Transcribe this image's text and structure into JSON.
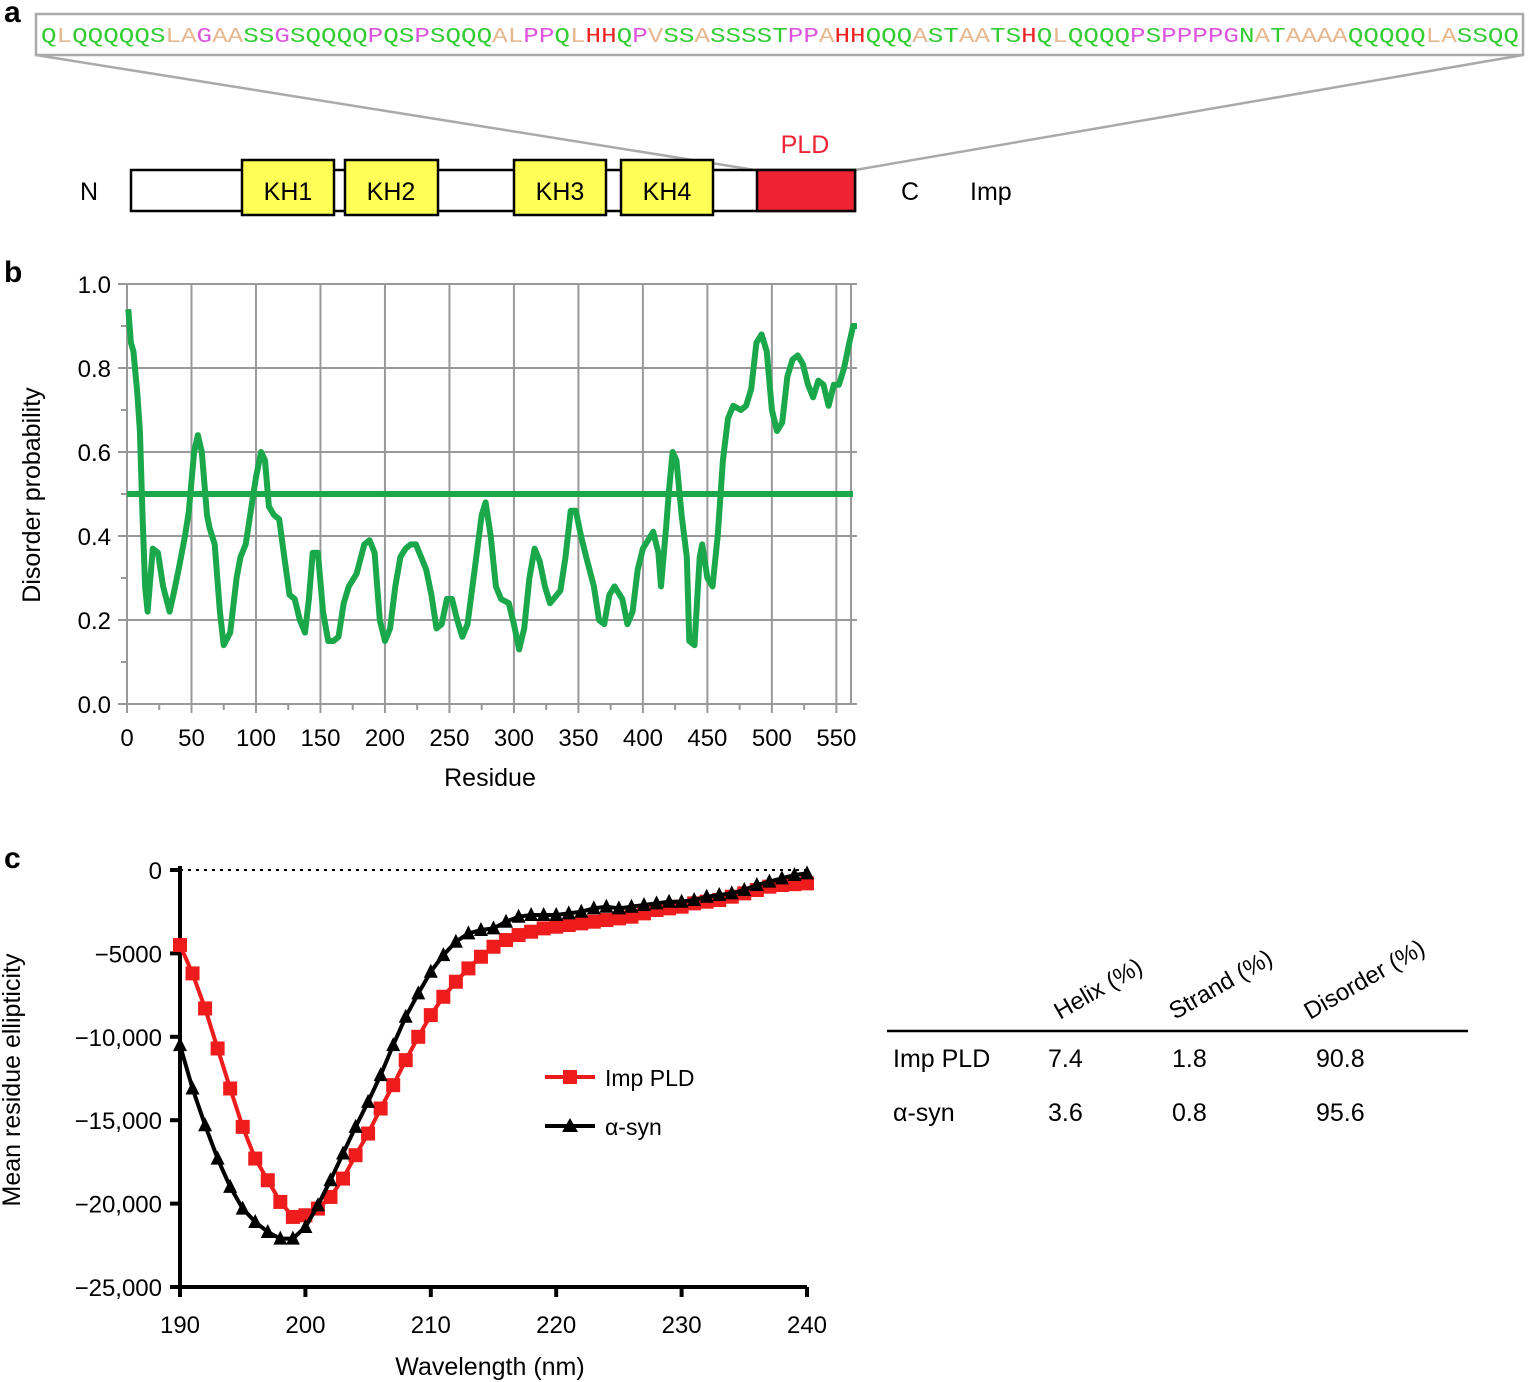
{
  "panels": {
    "a": {
      "label": "a",
      "sequence": [
        {
          "t": "Q",
          "c": "#33cc33"
        },
        {
          "t": "L",
          "c": "#e8b890"
        },
        {
          "t": "QQQQQS",
          "c": "#33cc33"
        },
        {
          "t": "LA",
          "c": "#e8b890"
        },
        {
          "t": "G",
          "c": "#dd55dd"
        },
        {
          "t": "AA",
          "c": "#e8b890"
        },
        {
          "t": "SS",
          "c": "#33cc33"
        },
        {
          "t": "G",
          "c": "#dd55dd"
        },
        {
          "t": "SQQQQ",
          "c": "#33cc33"
        },
        {
          "t": "P",
          "c": "#dd55dd"
        },
        {
          "t": "QS",
          "c": "#33cc33"
        },
        {
          "t": "P",
          "c": "#dd55dd"
        },
        {
          "t": "SQQQ",
          "c": "#33cc33"
        },
        {
          "t": "AL",
          "c": "#e8b890"
        },
        {
          "t": "PP",
          "c": "#dd55dd"
        },
        {
          "t": "Q",
          "c": "#33cc33"
        },
        {
          "t": "L",
          "c": "#e8b890"
        },
        {
          "t": "HH",
          "c": "#ee2222"
        },
        {
          "t": "Q",
          "c": "#33cc33"
        },
        {
          "t": "P",
          "c": "#dd55dd"
        },
        {
          "t": "V",
          "c": "#e8b890"
        },
        {
          "t": "SS",
          "c": "#33cc33"
        },
        {
          "t": "A",
          "c": "#e8b890"
        },
        {
          "t": "SSSST",
          "c": "#33cc33"
        },
        {
          "t": "PP",
          "c": "#dd55dd"
        },
        {
          "t": "A",
          "c": "#e8b890"
        },
        {
          "t": "HH",
          "c": "#ee2222"
        },
        {
          "t": "QQQ",
          "c": "#33cc33"
        },
        {
          "t": "A",
          "c": "#e8b890"
        },
        {
          "t": "ST",
          "c": "#33cc33"
        },
        {
          "t": "AA",
          "c": "#e8b890"
        },
        {
          "t": "TS",
          "c": "#33cc33"
        },
        {
          "t": "H",
          "c": "#ee2222"
        },
        {
          "t": "Q",
          "c": "#33cc33"
        },
        {
          "t": "L",
          "c": "#e8b890"
        },
        {
          "t": "QQQQ",
          "c": "#33cc33"
        },
        {
          "t": "P",
          "c": "#dd55dd"
        },
        {
          "t": "S",
          "c": "#33cc33"
        },
        {
          "t": "PPPP",
          "c": "#dd55dd"
        },
        {
          "t": "G",
          "c": "#dd55dd"
        },
        {
          "t": "N",
          "c": "#33cc33"
        },
        {
          "t": "A",
          "c": "#e8b890"
        },
        {
          "t": "T",
          "c": "#33cc33"
        },
        {
          "t": "AAAA",
          "c": "#e8b890"
        },
        {
          "t": "QQQQQ",
          "c": "#33cc33"
        },
        {
          "t": "LA",
          "c": "#e8b890"
        },
        {
          "t": "SSQQ",
          "c": "#33cc33"
        }
      ],
      "n_label": "N",
      "c_label": "C",
      "protein_label": "Imp",
      "pld_label": "PLD",
      "pld_color": "#ee2233",
      "kh_color": "#ffff55",
      "domains": [
        "KH1",
        "KH2",
        "KH3",
        "KH4"
      ]
    },
    "b": {
      "label": "b",
      "chart_data": {
        "type": "line",
        "xlabel": "Residue",
        "ylabel": "Disorder probability",
        "xlim": [
          0,
          566
        ],
        "ylim": [
          0,
          1.0
        ],
        "xticks": [
          "0",
          "50",
          "100",
          "150",
          "200",
          "250",
          "300",
          "350",
          "400",
          "450",
          "500",
          "550"
        ],
        "yticks": [
          "0.0",
          "0.2",
          "0.4",
          "0.6",
          "0.8",
          "1.0"
        ],
        "grid": true,
        "color": "#1aa84a",
        "threshold": 0.5,
        "series": [
          {
            "x": [
              1,
              3,
              5,
              8,
              10,
              12,
              14,
              16,
              20,
              24,
              28,
              33,
              36,
              40,
              45,
              48,
              52,
              55,
              58,
              62,
              64,
              68,
              72,
              75,
              80,
              85,
              88,
              92,
              96,
              100,
              104,
              107,
              110,
              114,
              118,
              122,
              126,
              130,
              134,
              138,
              141,
              144,
              148,
              152,
              156,
              160,
              164,
              168,
              172,
              178,
              184,
              188,
              192,
              196,
              200,
              204,
              208,
              212,
              216,
              220,
              224,
              228,
              232,
              236,
              240,
              244,
              248,
              252,
              256,
              260,
              264,
              270,
              275,
              278,
              282,
              286,
              290,
              296,
              300,
              304,
              308,
              312,
              316,
              320,
              324,
              328,
              336,
              340,
              344,
              348,
              352,
              356,
              362,
              366,
              370,
              374,
              378,
              384,
              388,
              392,
              396,
              400,
              404,
              408,
              412,
              414,
              418,
              420,
              423,
              426,
              430,
              434,
              436,
              440,
              444,
              446,
              450,
              454,
              458,
              462,
              466,
              470,
              476,
              480,
              484,
              488,
              492,
              496,
              500,
              504,
              508,
              512,
              516,
              520,
              524,
              528,
              532,
              536,
              540,
              544,
              548,
              552,
              556,
              560,
              563,
              566
            ],
            "y": [
              0.94,
              0.86,
              0.84,
              0.74,
              0.65,
              0.45,
              0.28,
              0.22,
              0.37,
              0.36,
              0.28,
              0.22,
              0.26,
              0.32,
              0.4,
              0.46,
              0.6,
              0.64,
              0.6,
              0.45,
              0.42,
              0.38,
              0.22,
              0.14,
              0.17,
              0.3,
              0.35,
              0.38,
              0.46,
              0.54,
              0.6,
              0.58,
              0.47,
              0.45,
              0.44,
              0.35,
              0.26,
              0.25,
              0.2,
              0.17,
              0.25,
              0.36,
              0.36,
              0.22,
              0.15,
              0.15,
              0.16,
              0.24,
              0.28,
              0.31,
              0.38,
              0.39,
              0.36,
              0.2,
              0.15,
              0.18,
              0.28,
              0.35,
              0.37,
              0.38,
              0.38,
              0.35,
              0.32,
              0.26,
              0.18,
              0.19,
              0.25,
              0.25,
              0.2,
              0.16,
              0.19,
              0.33,
              0.45,
              0.48,
              0.4,
              0.28,
              0.25,
              0.24,
              0.19,
              0.13,
              0.18,
              0.3,
              0.37,
              0.34,
              0.28,
              0.24,
              0.27,
              0.35,
              0.46,
              0.46,
              0.4,
              0.35,
              0.28,
              0.2,
              0.19,
              0.26,
              0.28,
              0.25,
              0.19,
              0.22,
              0.32,
              0.37,
              0.39,
              0.41,
              0.36,
              0.28,
              0.42,
              0.5,
              0.6,
              0.58,
              0.45,
              0.35,
              0.15,
              0.14,
              0.35,
              0.38,
              0.3,
              0.28,
              0.4,
              0.58,
              0.68,
              0.71,
              0.7,
              0.71,
              0.75,
              0.86,
              0.88,
              0.84,
              0.7,
              0.65,
              0.67,
              0.78,
              0.82,
              0.83,
              0.81,
              0.76,
              0.73,
              0.77,
              0.76,
              0.71,
              0.76,
              0.76,
              0.8,
              0.86,
              0.9,
              0.9
            ]
          }
        ]
      }
    },
    "c": {
      "label": "c",
      "chart_data": {
        "type": "line",
        "xlabel": "Wavelength (nm)",
        "ylabel": "Mean residue ellipticity",
        "xlim": [
          190,
          240
        ],
        "ylim": [
          -25000,
          0
        ],
        "xticks": [
          "190",
          "200",
          "210",
          "220",
          "230",
          "240"
        ],
        "yticks": [
          "0",
          "−5000",
          "−10,000",
          "−15,000",
          "−20,000",
          "−25,000"
        ],
        "zero_line": "dotted",
        "grid": false,
        "legend_position": "center",
        "series": [
          {
            "name": "Imp PLD",
            "color": "#ee1c1c",
            "marker": "square",
            "x": [
              190,
              191,
              192,
              193,
              194,
              195,
              196,
              197,
              198,
              199,
              200,
              201,
              202,
              203,
              204,
              205,
              206,
              207,
              208,
              209,
              210,
              211,
              212,
              213,
              214,
              215,
              216,
              217,
              218,
              219,
              220,
              221,
              222,
              223,
              224,
              225,
              226,
              227,
              228,
              229,
              230,
              231,
              232,
              233,
              234,
              235,
              236,
              237,
              238,
              239,
              240
            ],
            "y": [
              -4500,
              -6200,
              -8300,
              -10700,
              -13100,
              -15400,
              -17300,
              -18600,
              -19900,
              -20800,
              -20700,
              -20300,
              -19600,
              -18500,
              -17100,
              -15800,
              -14300,
              -12900,
              -11400,
              -10000,
              -8700,
              -7600,
              -6700,
              -5900,
              -5200,
              -4600,
              -4200,
              -3900,
              -3700,
              -3500,
              -3400,
              -3300,
              -3200,
              -3100,
              -3000,
              -2900,
              -2800,
              -2600,
              -2400,
              -2300,
              -2200,
              -2000,
              -1900,
              -1800,
              -1600,
              -1400,
              -1200,
              -1000,
              -900,
              -850,
              -800
            ]
          },
          {
            "name": "α-syn",
            "color": "#000000",
            "marker": "triangle",
            "x": [
              190,
              191,
              192,
              193,
              194,
              195,
              196,
              197,
              198,
              199,
              200,
              201,
              202,
              203,
              204,
              205,
              206,
              207,
              208,
              209,
              210,
              211,
              212,
              213,
              214,
              215,
              216,
              217,
              218,
              219,
              220,
              221,
              222,
              223,
              224,
              225,
              226,
              227,
              228,
              229,
              230,
              231,
              232,
              233,
              234,
              235,
              236,
              237,
              238,
              239,
              240
            ],
            "y": [
              -10500,
              -13100,
              -15300,
              -17300,
              -19000,
              -20300,
              -21100,
              -21700,
              -22100,
              -22100,
              -21400,
              -20100,
              -18600,
              -17000,
              -15400,
              -13900,
              -12300,
              -10500,
              -8800,
              -7400,
              -6100,
              -5100,
              -4300,
              -3800,
              -3600,
              -3500,
              -3100,
              -2800,
              -2700,
              -2700,
              -2700,
              -2600,
              -2500,
              -2300,
              -2200,
              -2300,
              -2200,
              -2100,
              -2000,
              -1900,
              -1900,
              -1800,
              -1600,
              -1500,
              -1400,
              -1200,
              -900,
              -700,
              -500,
              -300,
              -200
            ]
          }
        ],
        "table": {
          "columns": [
            "Helix (%)",
            "Strand (%)",
            "Disorder (%)"
          ],
          "rows": [
            {
              "name": "Imp PLD",
              "values": [
                "7.4",
                "1.8",
                "90.8"
              ]
            },
            {
              "name": "α-syn",
              "values": [
                "3.6",
                "0.8",
                "95.6"
              ]
            }
          ]
        }
      }
    }
  }
}
